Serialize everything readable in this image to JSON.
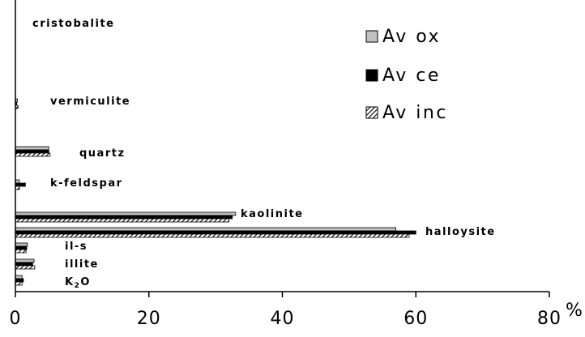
{
  "chart_data": {
    "type": "bar",
    "orientation": "horizontal",
    "categories": [
      "cristobalite",
      "vermiculite",
      "quartz",
      "k-feldspar",
      "kaolinite",
      "halloysite",
      "il-s",
      "illite",
      "K2O"
    ],
    "series": [
      {
        "name": "Av ox",
        "color": "#c0c0c0",
        "pattern": "solid",
        "values": [
          0,
          0.3,
          5,
          0.6,
          33,
          57,
          1.8,
          2.8,
          1.0
        ]
      },
      {
        "name": "Av ce",
        "color": "#000000",
        "pattern": "solid",
        "values": [
          0,
          0.2,
          5,
          1.5,
          32.5,
          60,
          1.7,
          2.6,
          1.2
        ]
      },
      {
        "name": "Av inc",
        "color": "#000000",
        "pattern": "hatched",
        "values": [
          0,
          0.4,
          5.2,
          0.6,
          32,
          59,
          1.6,
          2.9,
          1.0
        ]
      }
    ],
    "xlim": [
      0,
      80
    ],
    "xticks": [
      "0",
      "20",
      "40",
      "60",
      "80"
    ],
    "unit": "%",
    "legend_position": "top-right",
    "grid": false
  }
}
